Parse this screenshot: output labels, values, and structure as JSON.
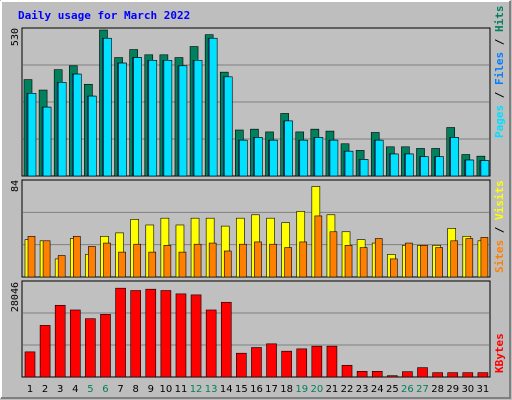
{
  "colors": {
    "hits": "#00805c",
    "files": "#0080ff",
    "pages": "#00e0ff",
    "visits": "#ffff00",
    "sites": "#ff8000",
    "kbytes": "#ff0000",
    "weekend_label": "#00805c",
    "title": "#0000ff",
    "panel_bg": "#c0c0c0",
    "frame_bg": "#bebebe"
  },
  "chart_data": [
    {
      "type": "bar",
      "title": "Daily usage for March 2022",
      "categories": [
        "1",
        "2",
        "3",
        "4",
        "5",
        "6",
        "7",
        "8",
        "9",
        "10",
        "11",
        "12",
        "13",
        "14",
        "15",
        "16",
        "17",
        "18",
        "19",
        "20",
        "21",
        "22",
        "23",
        "24",
        "25",
        "26",
        "27",
        "28",
        "29",
        "30",
        "31"
      ],
      "weekend_days": [
        "5",
        "6",
        "12",
        "13",
        "19",
        "20",
        "26",
        "27"
      ],
      "ymax_label": "530",
      "ylim": [
        0,
        530
      ],
      "legend": [
        "Pages",
        "Files",
        "Hits"
      ],
      "series": [
        {
          "name": "Hits",
          "values": [
            350,
            312,
            386,
            400,
            333,
            530,
            430,
            459,
            440,
            440,
            430,
            470,
            513,
            377,
            167,
            170,
            160,
            227,
            160,
            170,
            163,
            117,
            93,
            158,
            106,
            106,
            100,
            100,
            176,
            78,
            72
          ]
        },
        {
          "name": "Files",
          "values": [
            300,
            250,
            340,
            370,
            290,
            500,
            410,
            430,
            420,
            420,
            400,
            420,
            500,
            360,
            130,
            140,
            130,
            200,
            130,
            140,
            130,
            90,
            60,
            130,
            80,
            80,
            70,
            70,
            140,
            58,
            56
          ]
        },
        {
          "name": "Pages",
          "values": [
            300,
            250,
            340,
            370,
            290,
            500,
            410,
            430,
            420,
            420,
            400,
            420,
            500,
            360,
            130,
            140,
            130,
            200,
            130,
            140,
            130,
            90,
            60,
            130,
            80,
            80,
            70,
            70,
            140,
            58,
            56
          ]
        }
      ]
    },
    {
      "type": "bar",
      "categories": [
        "1",
        "2",
        "3",
        "4",
        "5",
        "6",
        "7",
        "8",
        "9",
        "10",
        "11",
        "12",
        "13",
        "14",
        "15",
        "16",
        "17",
        "18",
        "19",
        "20",
        "21",
        "22",
        "23",
        "24",
        "25",
        "26",
        "27",
        "28",
        "29",
        "30",
        "31"
      ],
      "ymax_label": "84",
      "ylim": [
        0,
        84
      ],
      "legend": [
        "Sites",
        "Visits"
      ],
      "series": [
        {
          "name": "Visits",
          "values": [
            33,
            32,
            16,
            34,
            20,
            36,
            39,
            51,
            46,
            52,
            46,
            52,
            52,
            45,
            52,
            55,
            52,
            48,
            58,
            80,
            55,
            40,
            33,
            30,
            20,
            28,
            28,
            28,
            43,
            36,
            32
          ]
        },
        {
          "name": "Sites",
          "values": [
            36,
            32,
            19,
            36,
            27,
            30,
            22,
            29,
            22,
            28,
            22,
            29,
            30,
            23,
            29,
            31,
            29,
            26,
            31,
            54,
            40,
            28,
            26,
            34,
            16,
            30,
            28,
            26,
            32,
            34,
            35
          ]
        }
      ]
    },
    {
      "type": "bar",
      "categories": [
        "1",
        "2",
        "3",
        "4",
        "5",
        "6",
        "7",
        "8",
        "9",
        "10",
        "11",
        "12",
        "13",
        "14",
        "15",
        "16",
        "17",
        "18",
        "19",
        "20",
        "21",
        "22",
        "23",
        "24",
        "25",
        "26",
        "27",
        "28",
        "29",
        "30",
        "31"
      ],
      "ymax_label": "28046",
      "ylim": [
        0,
        28046
      ],
      "legend": [
        "KBytes"
      ],
      "series": [
        {
          "name": "KBytes",
          "values": [
            7500,
            15400,
            21400,
            20000,
            17400,
            18700,
            26500,
            25800,
            26200,
            25800,
            24800,
            24500,
            20000,
            22300,
            7100,
            8800,
            9900,
            7700,
            8400,
            9200,
            9200,
            3500,
            1700,
            1700,
            400,
            1600,
            2800,
            1300,
            1300,
            1300,
            1300
          ]
        }
      ]
    }
  ]
}
